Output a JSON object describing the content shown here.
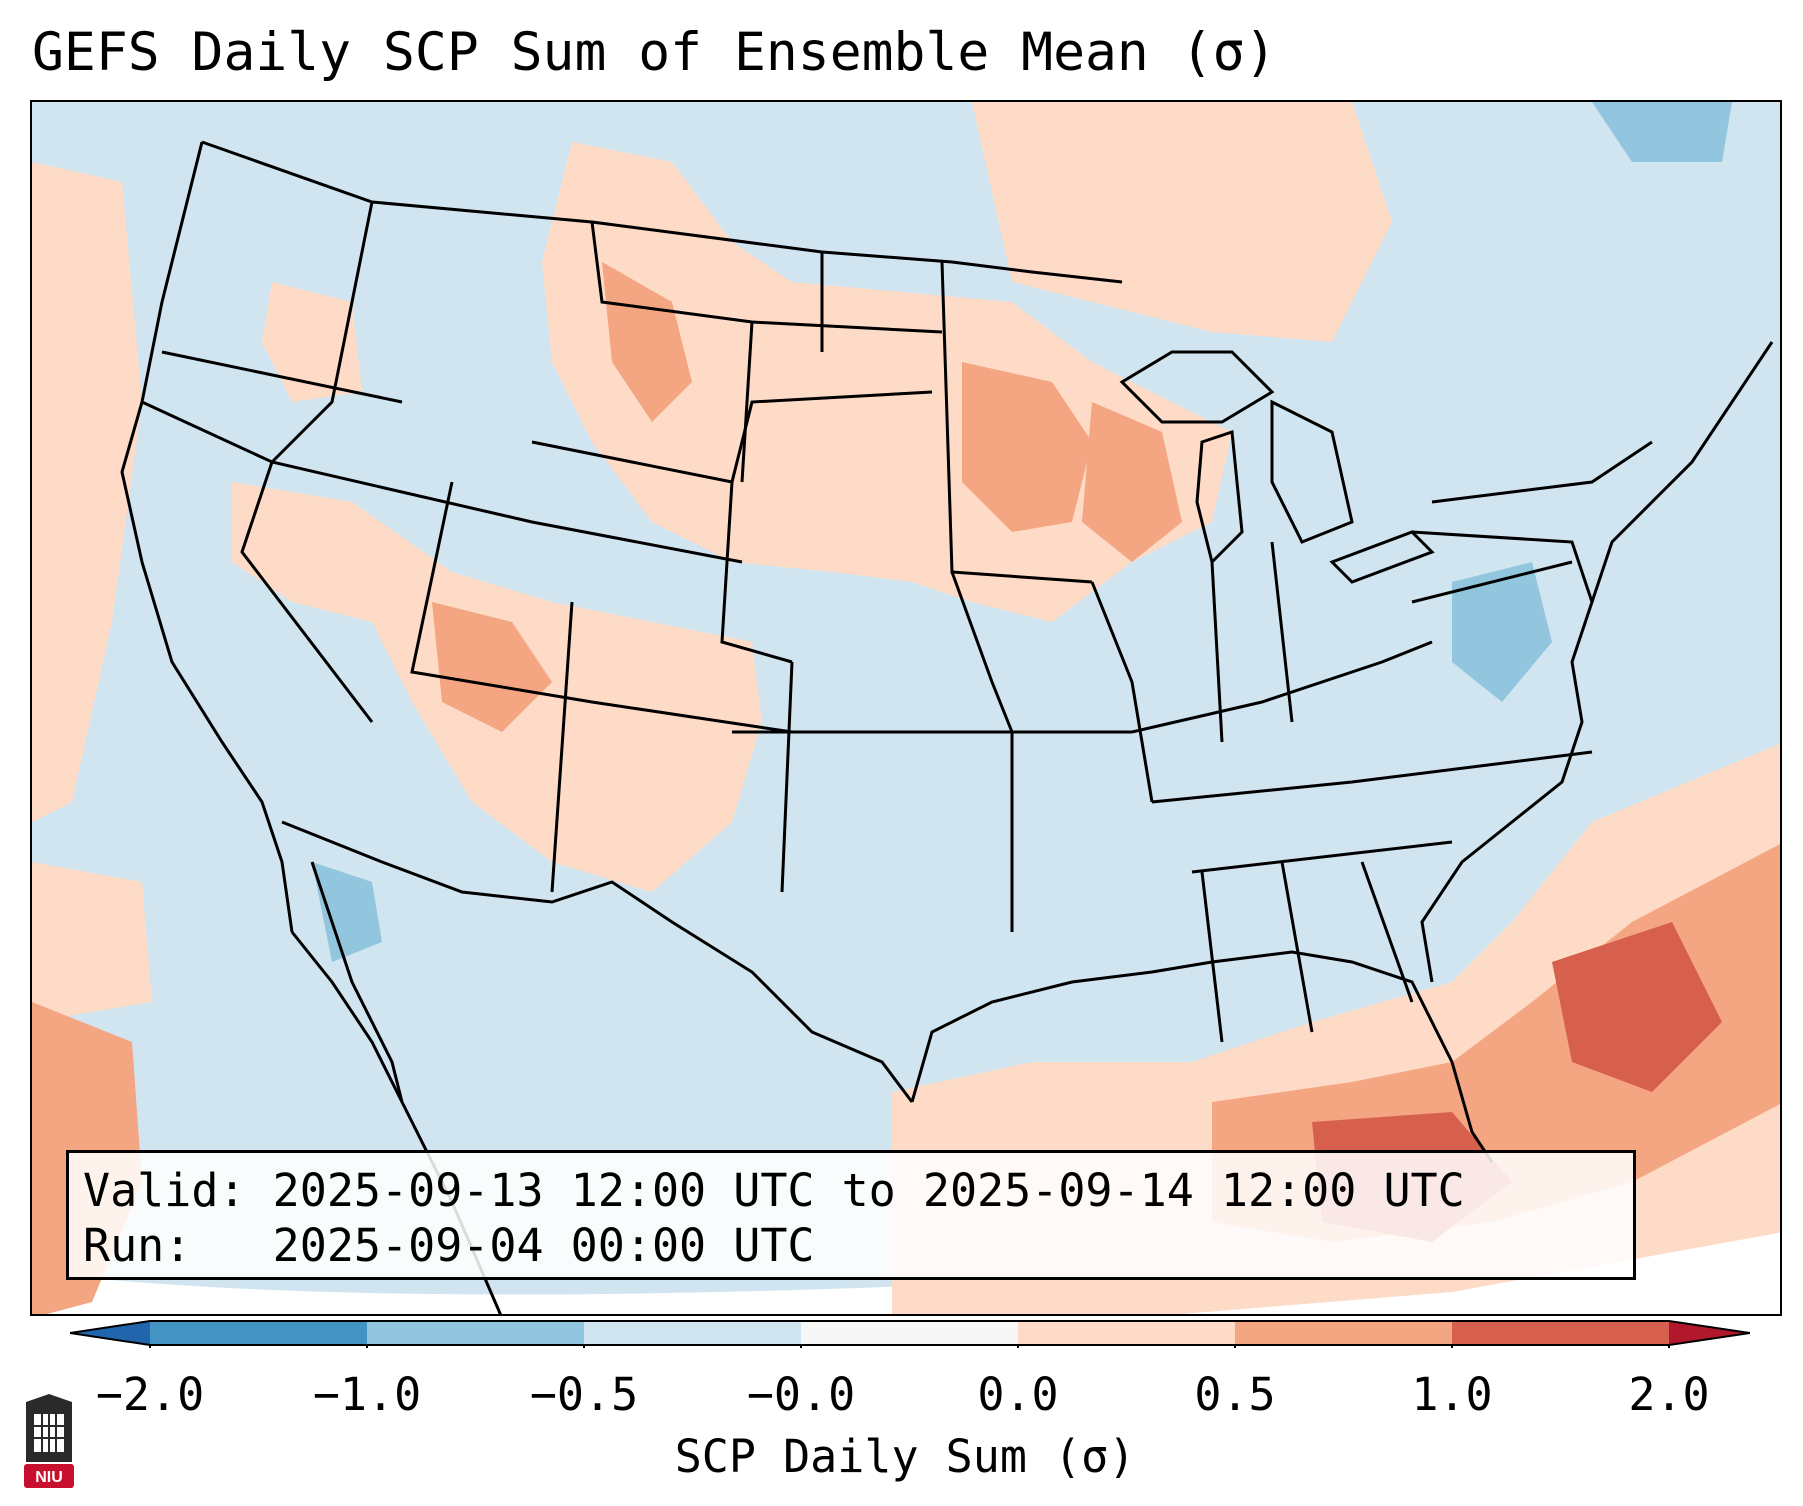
{
  "title": "GEFS Daily SCP Sum of Ensemble Mean (σ)",
  "info_box": {
    "valid_label": "Valid:",
    "valid_value": "2025-09-13 12:00 UTC to 2025-09-14 12:00 UTC",
    "run_label": "Run:",
    "run_value": "2025-09-04 00:00 UTC"
  },
  "colorbar": {
    "label": "SCP Daily Sum (σ)",
    "ticks": [
      "−2.0",
      "−1.0",
      "−0.5",
      "−0.0",
      "0.0",
      "0.5",
      "1.0",
      "2.0"
    ],
    "bins": [
      {
        "range": "-2.0 to -1.0",
        "color": "#4393c3"
      },
      {
        "range": "-1.0 to -0.5",
        "color": "#92c5de"
      },
      {
        "range": "-0.5 to -0.0",
        "color": "#d1e5f0"
      },
      {
        "range": "-0.0 to 0.0",
        "color": "#f7f7f7"
      },
      {
        "range": "0.0 to 0.5",
        "color": "#fddbc7"
      },
      {
        "range": "0.5 to 1.0",
        "color": "#f4a582"
      },
      {
        "range": "1.0 to 2.0",
        "color": "#d6604d"
      }
    ],
    "under_color": "#2166ac",
    "over_color": "#b2182b"
  },
  "map": {
    "background_color": "#d1e5f0",
    "line_color": "#000000"
  },
  "logo": {
    "text": "NIU",
    "color": "#c8102e"
  }
}
